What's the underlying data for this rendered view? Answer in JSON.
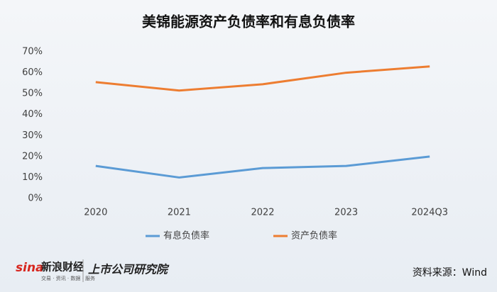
{
  "chart_data": {
    "type": "line",
    "title": "美锦能源资产负债率和有息负债率",
    "categories": [
      "2020",
      "2021",
      "2022",
      "2023",
      "2024Q3"
    ],
    "series": [
      {
        "name": "有息负债率",
        "color": "#5b9bd5",
        "values": [
          15.5,
          10,
          14.5,
          15.5,
          20
        ]
      },
      {
        "name": "资产负债率",
        "color": "#ed7d31",
        "values": [
          55.5,
          51.5,
          54.5,
          60,
          63
        ]
      }
    ],
    "ylim": [
      0,
      70
    ],
    "yticks": [
      {
        "value": 0,
        "label": "0%"
      },
      {
        "value": 10,
        "label": "10%"
      },
      {
        "value": 20,
        "label": "20%"
      },
      {
        "value": 30,
        "label": "30%"
      },
      {
        "value": 40,
        "label": "40%"
      },
      {
        "value": 50,
        "label": "50%"
      },
      {
        "value": 60,
        "label": "60%"
      },
      {
        "value": 70,
        "label": "70%"
      }
    ],
    "grid": false,
    "legend": "bottom",
    "source": "资料来源：Wind",
    "branding": {
      "sina": "sina",
      "name": "新浪财经",
      "tagline": "交易 · 资讯 · 数据 · 服务",
      "institute": "上市公司研究院"
    }
  }
}
